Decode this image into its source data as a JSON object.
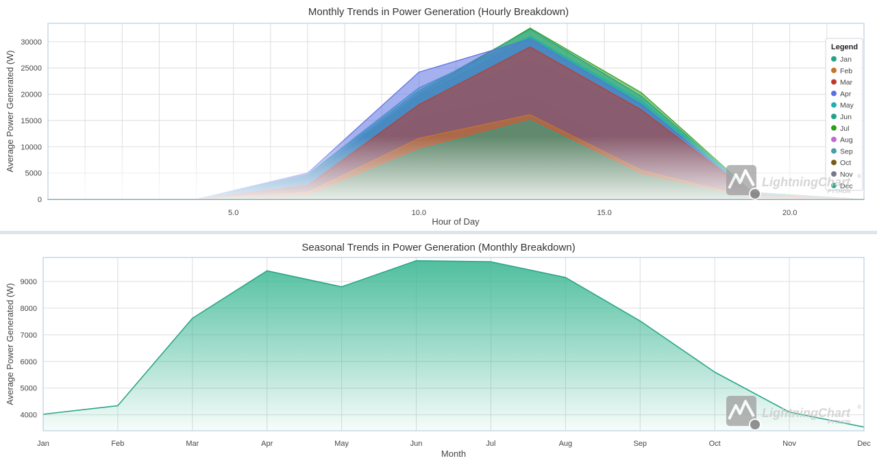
{
  "chart_data": [
    {
      "type": "area",
      "title": "Monthly Trends in Power Generation (Hourly Breakdown)",
      "xlabel": "Hour of Day",
      "ylabel": "Average Power Generated (W)",
      "xlim": [
        0,
        22
      ],
      "ylim": [
        0,
        33500
      ],
      "xticks": [
        5,
        10,
        15,
        20
      ],
      "xtick_labels": [
        "5.0",
        "10.0",
        "15.0",
        "20.0"
      ],
      "yticks": [
        0,
        5000,
        10000,
        15000,
        20000,
        25000,
        30000
      ],
      "grid": true,
      "legend": {
        "title": "Legend",
        "position": "right"
      },
      "x": [
        0,
        4,
        7,
        10,
        13,
        16,
        19,
        22
      ],
      "series": [
        {
          "name": "Jan",
          "color": "#26a48a",
          "values": [
            0,
            0,
            500,
            9400,
            15000,
            4600,
            0,
            0
          ]
        },
        {
          "name": "Feb",
          "color": "#c8742b",
          "values": [
            0,
            0,
            1300,
            11600,
            16100,
            5500,
            200,
            0
          ]
        },
        {
          "name": "Mar",
          "color": "#c0392b",
          "values": [
            0,
            0,
            2600,
            18000,
            29000,
            17000,
            900,
            0
          ]
        },
        {
          "name": "Apr",
          "color": "#5b6fe0",
          "values": [
            0,
            0,
            5000,
            24200,
            30500,
            18000,
            1000,
            0
          ]
        },
        {
          "name": "May",
          "color": "#21b0b0",
          "values": [
            0,
            0,
            4700,
            21200,
            31000,
            18800,
            1100,
            0
          ]
        },
        {
          "name": "Jun",
          "color": "#20a486",
          "values": [
            0,
            0,
            4600,
            20600,
            32400,
            19600,
            1200,
            0
          ]
        },
        {
          "name": "Jul",
          "color": "#2e9e1f",
          "values": [
            0,
            0,
            4200,
            20000,
            32600,
            20300,
            1300,
            0
          ]
        },
        {
          "name": "Aug",
          "color": "#c06ad0",
          "values": [
            0,
            0,
            3800,
            19500,
            30800,
            18200,
            700,
            0
          ]
        },
        {
          "name": "Sep",
          "color": "#4a9cab",
          "values": [
            0,
            0,
            3300,
            18000,
            26600,
            16400,
            500,
            0
          ]
        },
        {
          "name": "Oct",
          "color": "#7a5a14",
          "values": [
            0,
            0,
            1800,
            15800,
            19800,
            7600,
            100,
            0
          ]
        },
        {
          "name": "Nov",
          "color": "#777a88",
          "values": [
            0,
            0,
            1600,
            12000,
            16200,
            5800,
            0,
            0
          ]
        },
        {
          "name": "Dec",
          "color": "#2aa590",
          "values": [
            0,
            0,
            600,
            9200,
            15000,
            4400,
            0,
            0
          ]
        }
      ]
    },
    {
      "type": "area",
      "title": "Seasonal Trends in Power Generation (Monthly Breakdown)",
      "xlabel": "Month",
      "ylabel": "Average Power Generated (W)",
      "ylim": [
        3400,
        9900
      ],
      "yticks": [
        4000,
        5000,
        6000,
        7000,
        8000,
        9000
      ],
      "grid": true,
      "categories": [
        "Jan",
        "Feb",
        "Mar",
        "Apr",
        "May",
        "Jun",
        "Jul",
        "Aug",
        "Sep",
        "Oct",
        "Nov",
        "Dec"
      ],
      "series": [
        {
          "color": "#3db894",
          "values": [
            4020,
            4340,
            7620,
            9400,
            8800,
            9780,
            9740,
            9150,
            7520,
            5600,
            4100,
            3540
          ]
        }
      ]
    }
  ],
  "watermark": {
    "brand": "LightningChart",
    "sub": "PYTHON",
    "mark": "®"
  }
}
